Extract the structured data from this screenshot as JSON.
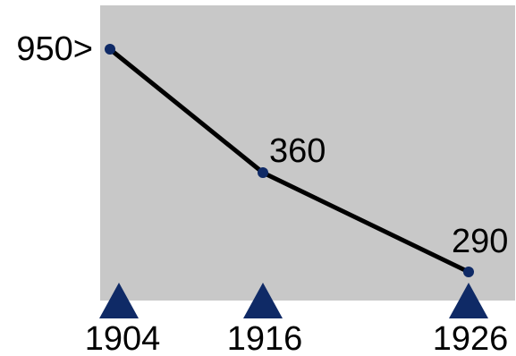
{
  "chart_data": {
    "type": "line",
    "x": [
      1904,
      1916,
      1926
    ],
    "values": [
      950,
      360,
      290
    ],
    "point_labels": [
      "950>",
      "360",
      "290"
    ],
    "x_tick_labels": [
      "1904",
      "1916",
      "1926"
    ],
    "title": "",
    "xlabel": "",
    "ylabel": "",
    "grid": false
  },
  "colors": {
    "plot_background": "#c8c8c8",
    "line": "#000000",
    "marker": "#0f2a66",
    "x_marker": "#0f2a66"
  }
}
